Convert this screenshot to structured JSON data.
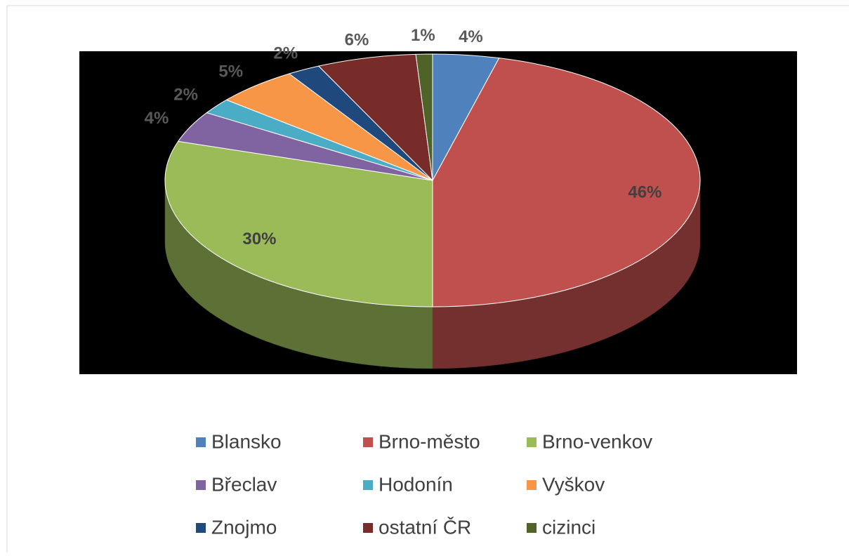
{
  "chart_data": {
    "type": "pie3d",
    "categories": [
      "Blansko",
      "Brno-město",
      "Brno-venkov",
      "Břeclav",
      "Hodonín",
      "Vyškov",
      "Znojmo",
      "ostatní ČR",
      "cizinci"
    ],
    "values": [
      4,
      46,
      30,
      4,
      2,
      5,
      2,
      6,
      1
    ],
    "value_labels": [
      "4%",
      "46%",
      "30%",
      "4%",
      "2%",
      "5%",
      "2%",
      "6%",
      "1%"
    ],
    "colors": [
      "#4f81bd",
      "#c0504d",
      "#9bbb59",
      "#8064a2",
      "#4bacc6",
      "#f79646",
      "#1f497d",
      "#772c2a",
      "#4f6228"
    ],
    "legend": "bottom"
  }
}
